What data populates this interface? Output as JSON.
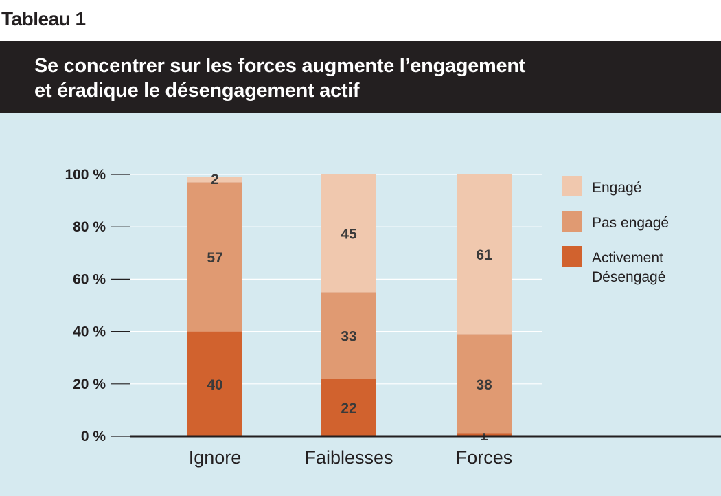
{
  "figure_label": "Tableau 1",
  "title_line1": "Se concentrer sur les forces augmente l’engagement",
  "title_line2": "et éradique le désengagement actif",
  "colors": {
    "engage": "#f0c8ae",
    "pas_engage": "#e09a72",
    "activement": "#d1622e",
    "background": "#d6eaf0",
    "title_bar": "#231f20"
  },
  "chart_data": {
    "type": "bar",
    "stacked": true,
    "categories": [
      "Ignore",
      "Faiblesses",
      "Forces"
    ],
    "series": [
      {
        "name": "Activement Désengagé",
        "values": [
          40,
          22,
          1
        ]
      },
      {
        "name": "Pas engagé",
        "values": [
          57,
          33,
          38
        ]
      },
      {
        "name": "Engagé",
        "values": [
          2,
          45,
          61
        ]
      }
    ],
    "ylim": [
      0,
      100
    ],
    "yticks": [
      "0 %",
      "20 %",
      "40 %",
      "60 %",
      "80 %",
      "100 %"
    ],
    "legend_position": "right",
    "legend": [
      "Engagé",
      "Pas engagé",
      "Activement Désengagé"
    ],
    "legend_lines": [
      [
        "Engagé"
      ],
      [
        "Pas engagé"
      ],
      [
        "Activement",
        "Désengagé"
      ]
    ]
  }
}
